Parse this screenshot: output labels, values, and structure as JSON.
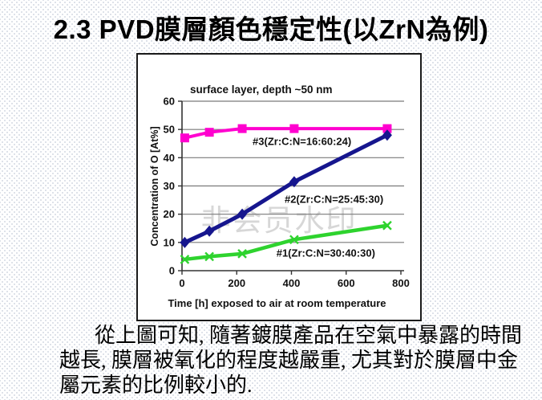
{
  "slide": {
    "title": "2.3 PVD膜層顏色穩定性(以ZrN為例)",
    "paragraph_lines": [
      "從上圖可知, 隨著鍍膜產品在空氣中暴露的時間",
      "越長, 膜層被氧化的程度越嚴重, 尤其對於膜層中金",
      "屬元素的比例較小的."
    ]
  },
  "watermark_text": "非会员水印",
  "chart_data": {
    "type": "line",
    "title": "surface layer, depth ~50 nm",
    "xlabel": "Time [h] exposed to air at room temperature",
    "ylabel": "Concentration of O [At%]",
    "xlim": [
      0,
      800
    ],
    "ylim": [
      0,
      60
    ],
    "x_ticks": [
      0,
      200,
      400,
      600,
      800
    ],
    "y_ticks": [
      0,
      10,
      20,
      30,
      40,
      50,
      60
    ],
    "grid": "horizontal-only",
    "legend": "inline-labels",
    "x": [
      10,
      100,
      220,
      410,
      750
    ],
    "series": [
      {
        "name": "#3(Zr:C:N=16:60:24)",
        "values": [
          47,
          49,
          50.3,
          50.3,
          50.3
        ],
        "color": "#ff00cf",
        "marker": "square"
      },
      {
        "name": "#2(Zr:C:N=25:45:30)",
        "values": [
          10,
          14,
          20,
          31.5,
          48
        ],
        "color": "#16168e",
        "marker": "diamond"
      },
      {
        "name": "#1(Zr:C:N=30:40:30)",
        "values": [
          4,
          5,
          6,
          11,
          16
        ],
        "color": "#2ed32e",
        "marker": "x"
      }
    ],
    "annotations": [
      {
        "text": "#3(Zr:C:N=16:60:24)",
        "x": 258,
        "y": 44.5
      },
      {
        "text": "#2(Zr:C:N=25:45:30)",
        "x": 375,
        "y": 24
      },
      {
        "text": "#1(Zr:C:N=30:40:30)",
        "x": 345,
        "y": 5
      }
    ],
    "axis_color": "#333333",
    "grid_color": "#7a7a7a",
    "text_color": "#111111"
  }
}
